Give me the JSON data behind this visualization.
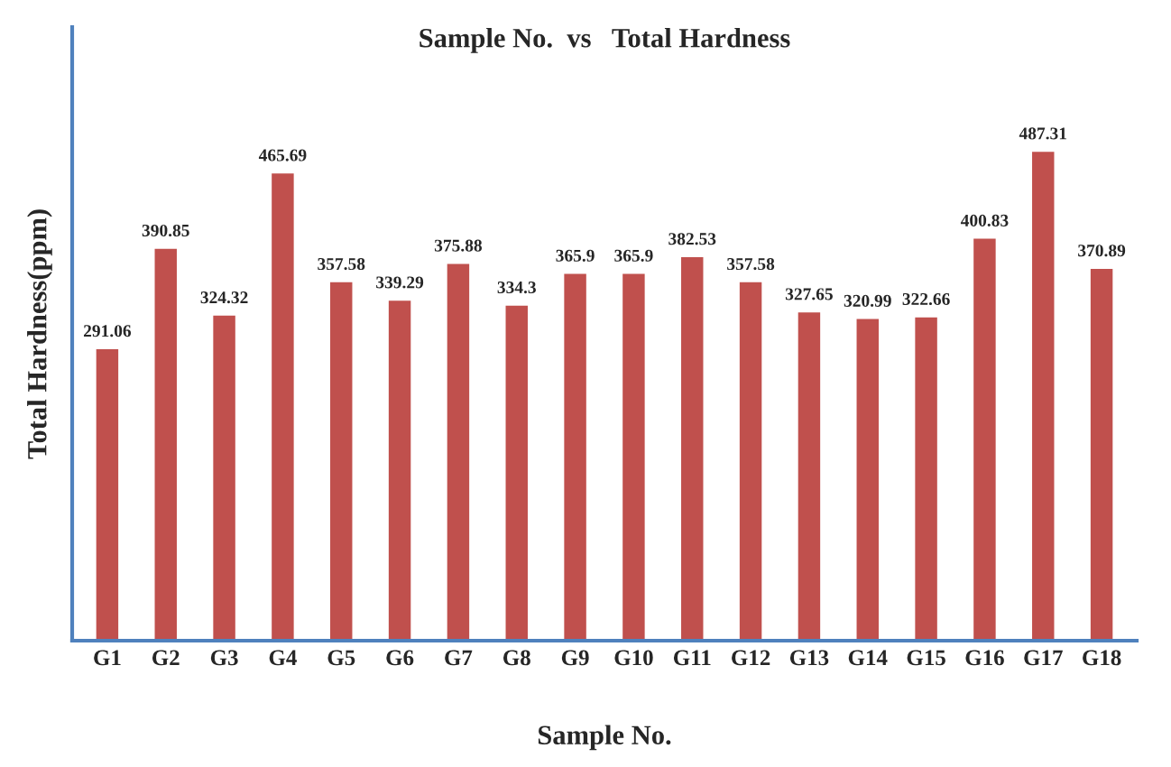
{
  "chart_data": {
    "type": "bar",
    "title": "Sample No.  vs   Total Hardness",
    "xlabel": "Sample No.",
    "ylabel": "Total Hardness(ppm)",
    "categories": [
      "G1",
      "G2",
      "G3",
      "G4",
      "G5",
      "G6",
      "G7",
      "G8",
      "G9",
      "G10",
      "G11",
      "G12",
      "G13",
      "G14",
      "G15",
      "G16",
      "G17",
      "G18"
    ],
    "values": [
      291.06,
      390.85,
      324.32,
      465.69,
      357.58,
      339.29,
      375.88,
      334.3,
      365.9,
      365.9,
      382.53,
      357.58,
      327.65,
      320.99,
      322.66,
      400.83,
      487.31,
      370.89
    ],
    "color": "#c0504d",
    "ylim": [
      0,
      610
    ],
    "data_labels": true,
    "grid": false,
    "legend": false,
    "tick_labels": "x"
  }
}
